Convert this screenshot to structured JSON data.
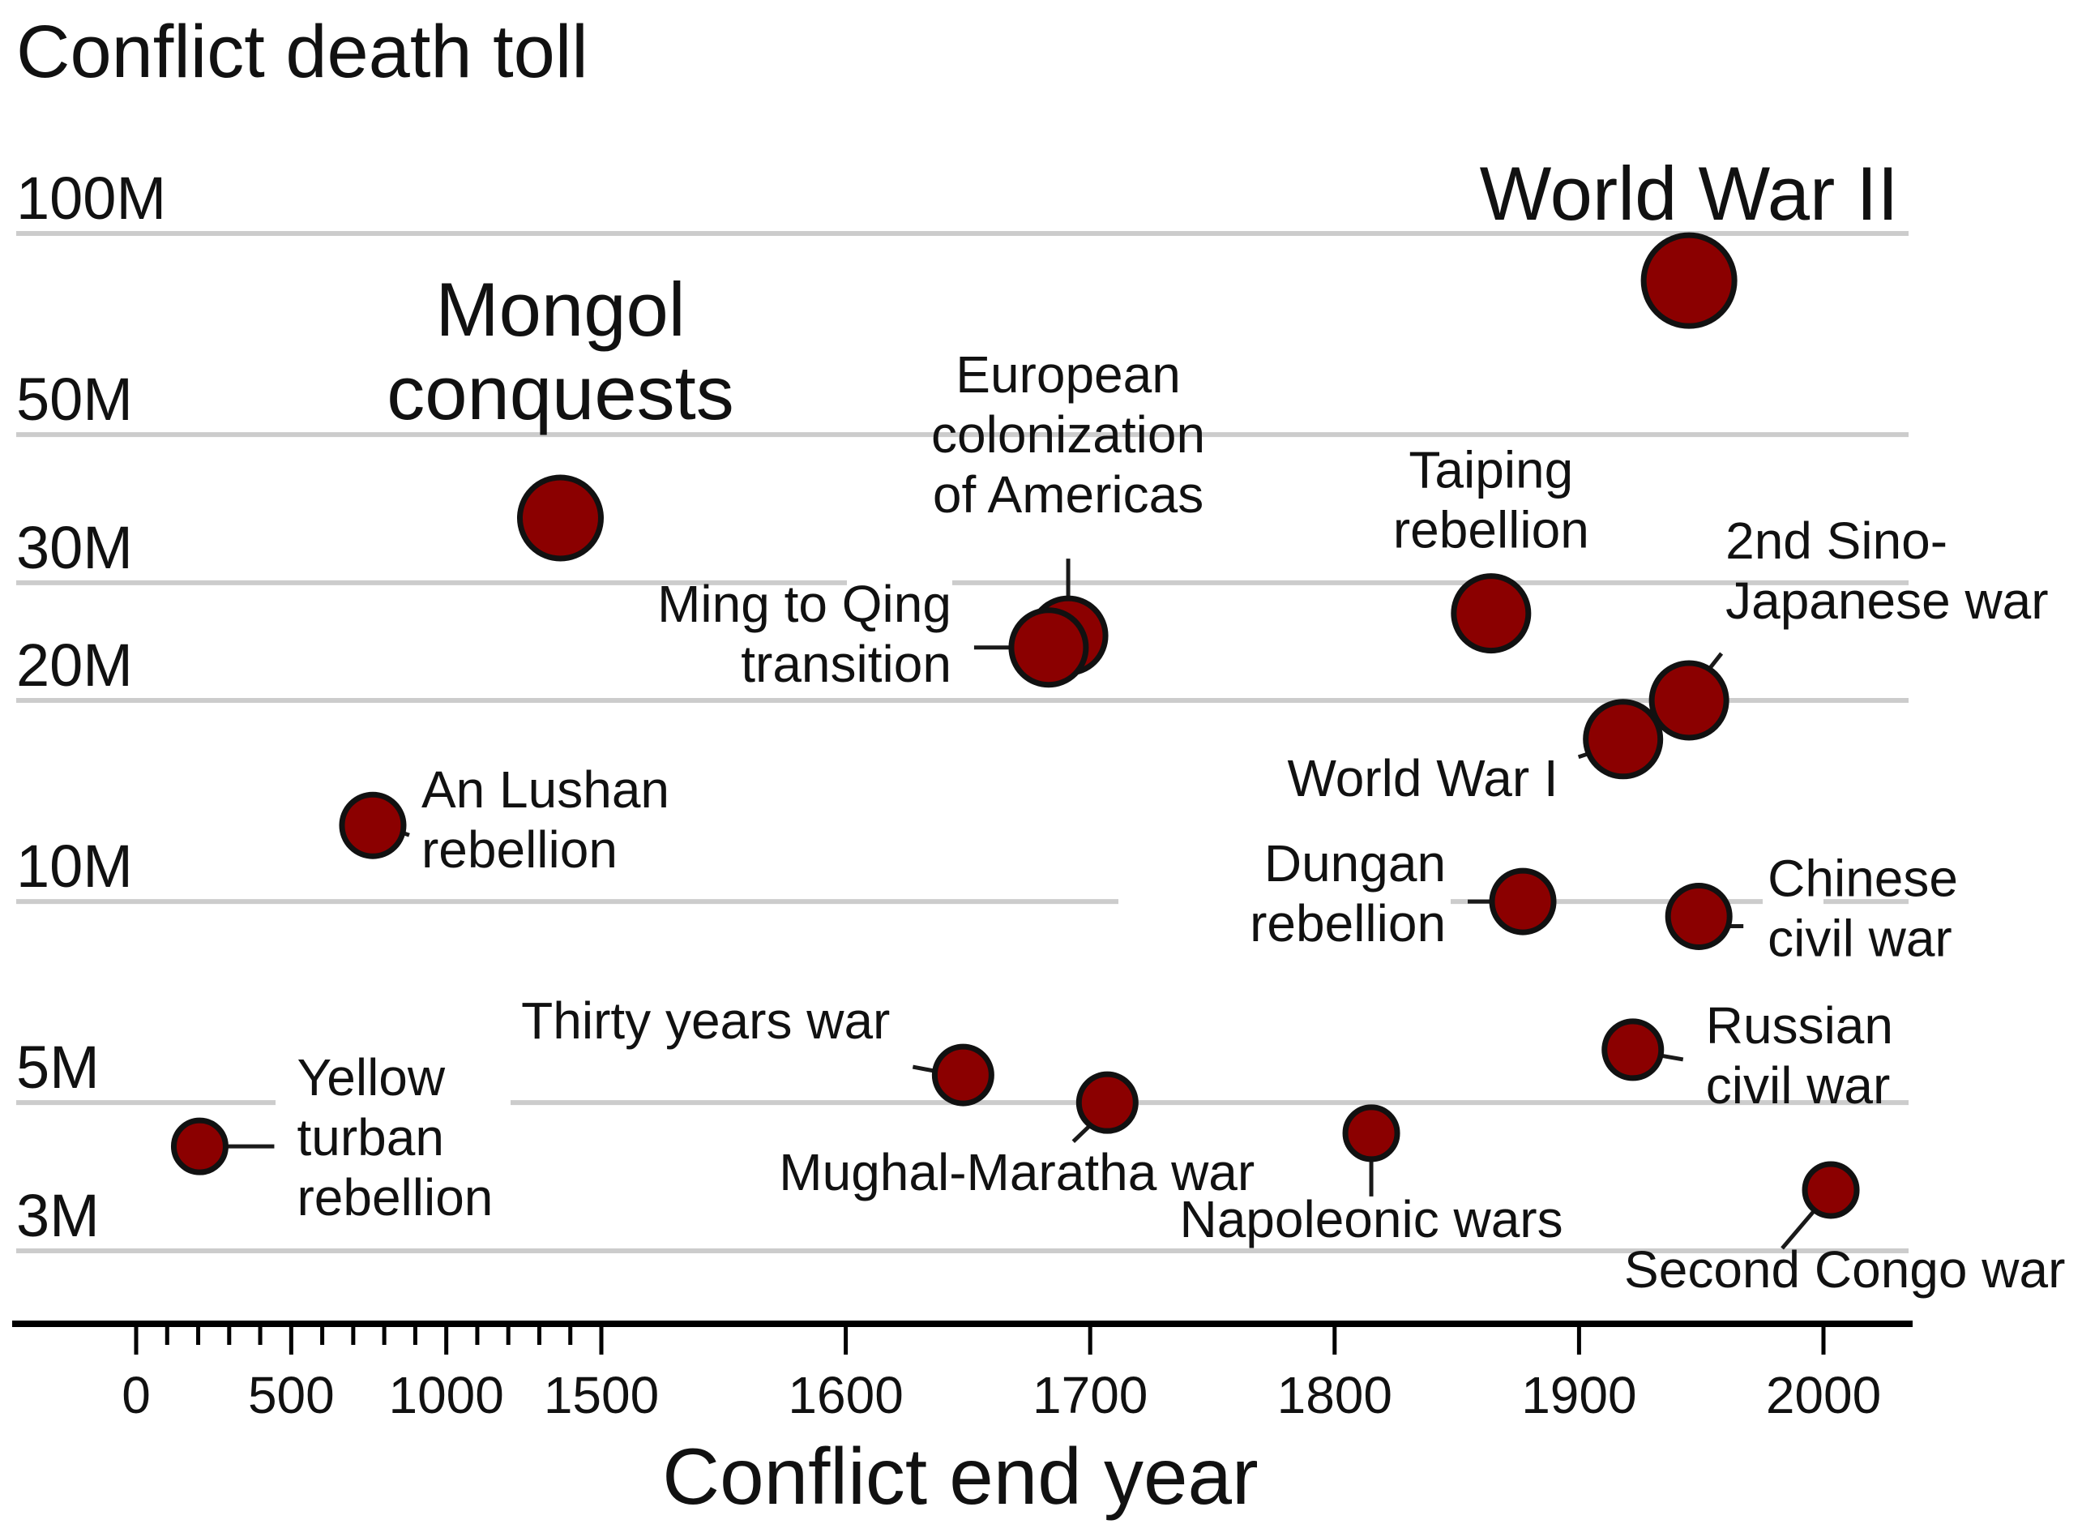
{
  "chart_data": {
    "type": "scatter",
    "title": "Conflict death toll",
    "xlabel": "Conflict end year",
    "ylabel": "",
    "y_scale": "log",
    "y_ticks": [
      {
        "value": 3000000,
        "label": "3M"
      },
      {
        "value": 5000000,
        "label": "5M"
      },
      {
        "value": 10000000,
        "label": "10M"
      },
      {
        "value": 20000000,
        "label": "20M"
      },
      {
        "value": 30000000,
        "label": "30M"
      },
      {
        "value": 50000000,
        "label": "50M"
      },
      {
        "value": 100000000,
        "label": "100M"
      }
    ],
    "x_scale": "piecewise: compressed 0-1500, linear 1500-2000",
    "x_ticks": [
      {
        "value": 0,
        "label": "0"
      },
      {
        "value": 500,
        "label": "500"
      },
      {
        "value": 1000,
        "label": "1000"
      },
      {
        "value": 1500,
        "label": "1500"
      },
      {
        "value": 1600,
        "label": "1600"
      },
      {
        "value": 1700,
        "label": "1700"
      },
      {
        "value": 1800,
        "label": "1800"
      },
      {
        "value": 1900,
        "label": "1900"
      },
      {
        "value": 2000,
        "label": "2000"
      }
    ],
    "marker_color": "#8b0000",
    "grid": true,
    "points": [
      {
        "name": "Yellow turban rebellion",
        "x": 205,
        "y": 4300000,
        "label": [
          "Yellow",
          "turban",
          "rebellion"
        ]
      },
      {
        "name": "An Lushan rebellion",
        "x": 763,
        "y": 13000000,
        "label": [
          "An Lushan",
          "rebellion"
        ]
      },
      {
        "name": "Mongol conquests",
        "x": 1368,
        "y": 37500000,
        "label": [
          "Mongol",
          "conquests"
        ]
      },
      {
        "name": "Thirty years war",
        "x": 1648,
        "y": 5500000,
        "label": [
          "Thirty years war"
        ]
      },
      {
        "name": "European colonization of Americas",
        "x": 1691,
        "y": 25000000,
        "label": [
          "European",
          "colonization",
          "of Americas"
        ]
      },
      {
        "name": "Ming to Qing transition",
        "x": 1683,
        "y": 24000000,
        "label": [
          "Ming to Qing",
          "transition"
        ]
      },
      {
        "name": "Mughal-Maratha war",
        "x": 1707,
        "y": 5000000,
        "label": [
          "Mughal-Maratha war"
        ]
      },
      {
        "name": "Napoleonic wars",
        "x": 1815,
        "y": 4500000,
        "label": [
          "Napoleonic wars"
        ]
      },
      {
        "name": "Taiping rebellion",
        "x": 1864,
        "y": 27000000,
        "label": [
          "Taiping",
          "rebellion"
        ]
      },
      {
        "name": "Dungan rebellion",
        "x": 1877,
        "y": 10000000,
        "label": [
          "Dungan",
          "rebellion"
        ]
      },
      {
        "name": "World War I",
        "x": 1918,
        "y": 17500000,
        "label": [
          "World War I"
        ]
      },
      {
        "name": "Russian civil war",
        "x": 1922,
        "y": 6000000,
        "label": [
          "Russian",
          "civil war"
        ]
      },
      {
        "name": "World War II",
        "x": 1945,
        "y": 85000000,
        "label": [
          "World War II"
        ]
      },
      {
        "name": "2nd Sino-Japanese war",
        "x": 1945,
        "y": 20000000,
        "label": [
          "2nd Sino-",
          "Japanese war"
        ]
      },
      {
        "name": "Chinese civil war",
        "x": 1949,
        "y": 9500000,
        "label": [
          "Chinese",
          "civil war"
        ]
      },
      {
        "name": "Second Congo war",
        "x": 2003,
        "y": 3700000,
        "label": [
          "Second Congo war"
        ]
      }
    ]
  }
}
